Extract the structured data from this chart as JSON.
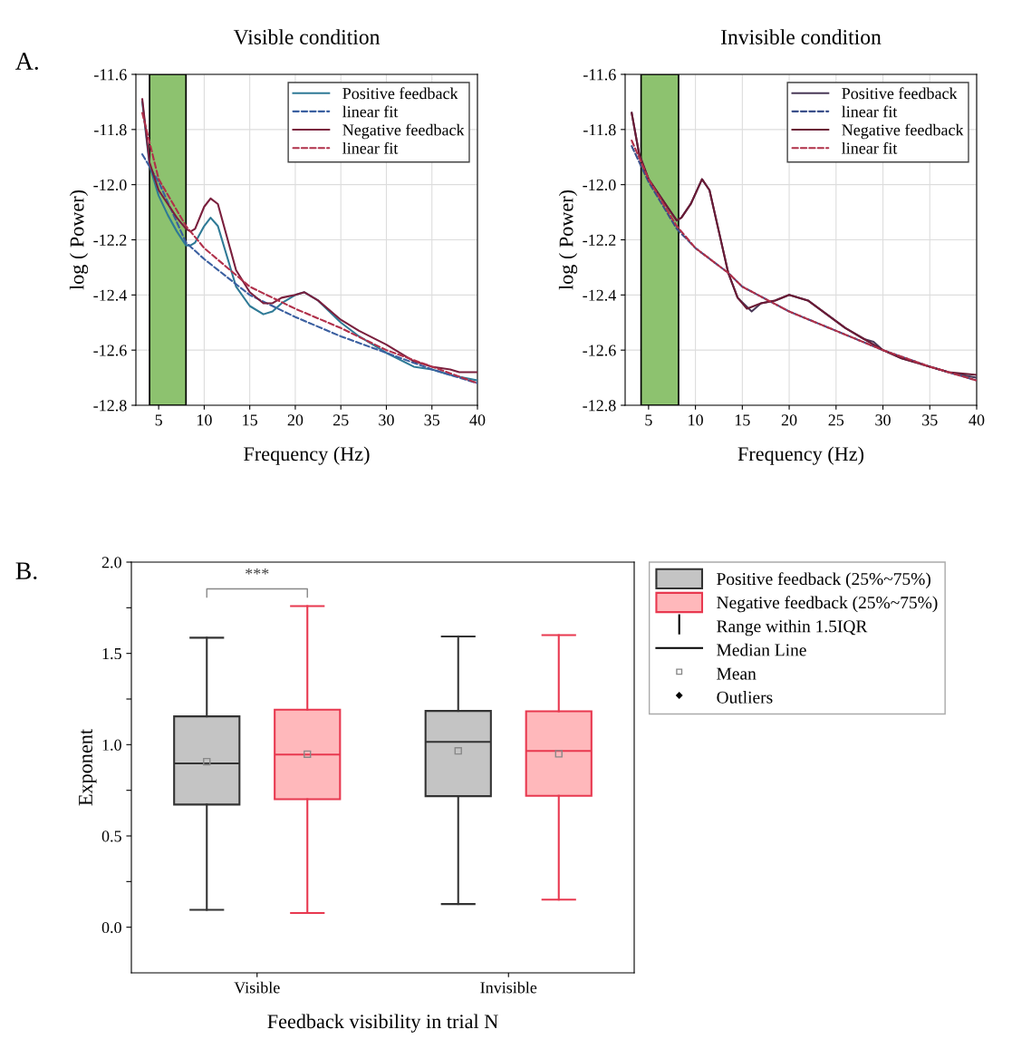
{
  "chart_data": [
    {
      "type": "line",
      "title": "Visible condition",
      "xlabel": "Frequency (Hz)",
      "ylabel": "log ( Power)",
      "annotations": [
        "A."
      ],
      "xlim": [
        2.5,
        40
      ],
      "xticks": [
        5,
        10,
        15,
        20,
        25,
        30,
        35,
        40
      ],
      "ylim": [
        -12.8,
        -11.6
      ],
      "yticks": [
        -12.8,
        -12.6,
        -12.4,
        -12.2,
        {
          "value": -12.0,
          "label": "-12.0"
        },
        -11.8,
        -11.6
      ],
      "grid": true,
      "legend": "top right",
      "bands": [
        {
          "axis": "x",
          "from": 4,
          "to": 8,
          "color": "#8dc26f"
        }
      ],
      "series": [
        {
          "name": "Positive feedback",
          "color": "#2f7a96",
          "line_style": "solid",
          "x": [
            3.2,
            4,
            5,
            6,
            7,
            8,
            8.5,
            9,
            10,
            10.7,
            11.5,
            12.5,
            13.5,
            15,
            16.5,
            17.5,
            18.5,
            20,
            21,
            22.5,
            25,
            27,
            30,
            33,
            35,
            37,
            40
          ],
          "values": [
            -11.7,
            -11.93,
            -12.04,
            -12.11,
            -12.17,
            -12.22,
            -12.22,
            -12.21,
            -12.15,
            -12.12,
            -12.15,
            -12.26,
            -12.37,
            -12.44,
            -12.47,
            -12.46,
            -12.43,
            -12.4,
            -12.39,
            -12.42,
            -12.5,
            -12.55,
            -12.61,
            -12.66,
            -12.67,
            -12.69,
            -12.71
          ]
        },
        {
          "name": "linear fit",
          "color": "#3a5fa0",
          "line_style": "dashed",
          "x": [
            3.2,
            5,
            8,
            10,
            15,
            20,
            25,
            30,
            35,
            40
          ],
          "values": [
            -11.89,
            -11.99,
            -12.21,
            -12.27,
            -12.4,
            -12.48,
            -12.55,
            -12.61,
            -12.67,
            -12.72
          ]
        },
        {
          "name": "Negative feedback",
          "color": "#7a1f3d",
          "line_style": "solid",
          "x": [
            3.2,
            4,
            5,
            6,
            7,
            8,
            8.5,
            9,
            10,
            10.7,
            11.5,
            12.5,
            13.5,
            15,
            16.5,
            17.5,
            18.5,
            20,
            21,
            22.5,
            25,
            27,
            30,
            33,
            35,
            37,
            38,
            40
          ],
          "values": [
            -11.69,
            -11.92,
            -12.02,
            -12.07,
            -12.12,
            -12.16,
            -12.17,
            -12.16,
            -12.08,
            -12.05,
            -12.07,
            -12.19,
            -12.31,
            -12.39,
            -12.43,
            -12.43,
            -12.41,
            -12.4,
            -12.39,
            -12.42,
            -12.49,
            -12.53,
            -12.58,
            -12.64,
            -12.66,
            -12.67,
            -12.68,
            -12.68
          ]
        },
        {
          "name": "linear fit",
          "color": "#b0304a",
          "line_style": "dashed",
          "x": [
            3.2,
            5,
            8,
            10,
            15,
            20,
            25,
            30,
            35,
            40
          ],
          "values": [
            -11.74,
            -11.98,
            -12.15,
            -12.23,
            -12.37,
            -12.45,
            -12.52,
            -12.6,
            -12.66,
            -12.72
          ]
        }
      ]
    },
    {
      "type": "line",
      "title": "Invisible condition",
      "xlabel": "Frequency (Hz)",
      "ylabel": "log ( Power)",
      "xlim": [
        2.5,
        40
      ],
      "xticks": [
        5,
        10,
        15,
        20,
        25,
        30,
        35,
        40
      ],
      "ylim": [
        -12.8,
        -11.6
      ],
      "yticks": [
        -12.8,
        -12.6,
        -12.4,
        -12.2,
        {
          "value": -12.0,
          "label": "-12.0"
        },
        -11.8,
        -11.6
      ],
      "grid": true,
      "legend": "top right",
      "bands": [
        {
          "axis": "x",
          "from": 4.2,
          "to": 8.2,
          "color": "#8dc26f"
        }
      ],
      "series": [
        {
          "name": "Positive feedback",
          "color": "#4a3a58",
          "line_style": "solid",
          "x": [
            3.2,
            4,
            5,
            6,
            7,
            8,
            8.5,
            9.5,
            10.7,
            11.5,
            12.5,
            13.5,
            14.5,
            16,
            17,
            18.5,
            20,
            22,
            24,
            26,
            28,
            29,
            30,
            32,
            34,
            37,
            40
          ],
          "values": [
            -11.74,
            -11.89,
            -11.98,
            -12.03,
            -12.08,
            -12.13,
            -12.12,
            -12.07,
            -11.98,
            -12.02,
            -12.17,
            -12.32,
            -12.41,
            -12.46,
            -12.43,
            -12.42,
            -12.4,
            -12.42,
            -12.47,
            -12.52,
            -12.56,
            -12.57,
            -12.6,
            -12.63,
            -12.65,
            -12.68,
            -12.7
          ]
        },
        {
          "name": "linear fit",
          "color": "#3a4f8a",
          "line_style": "dashed",
          "x": [
            3.2,
            5,
            8,
            10,
            13.5,
            15,
            20,
            25,
            30,
            35,
            40
          ],
          "values": [
            -11.86,
            -11.99,
            -12.16,
            -12.23,
            -12.32,
            -12.37,
            -12.46,
            -12.53,
            -12.6,
            -12.66,
            -12.71
          ]
        },
        {
          "name": "Negative feedback",
          "color": "#6a1a35",
          "line_style": "solid",
          "x": [
            3.2,
            4,
            5,
            6,
            7,
            8,
            8.5,
            9.5,
            10.7,
            11.5,
            12.5,
            13.5,
            14.5,
            15.5,
            17,
            18.5,
            20,
            22,
            24,
            26,
            28,
            30,
            32,
            34,
            37,
            40
          ],
          "values": [
            -11.74,
            -11.89,
            -11.98,
            -12.03,
            -12.08,
            -12.13,
            -12.12,
            -12.07,
            -11.98,
            -12.02,
            -12.17,
            -12.32,
            -12.41,
            -12.45,
            -12.43,
            -12.42,
            -12.4,
            -12.42,
            -12.47,
            -12.52,
            -12.56,
            -12.6,
            -12.63,
            -12.65,
            -12.68,
            -12.69
          ]
        },
        {
          "name": "linear fit",
          "color": "#b03048",
          "line_style": "dashed",
          "x": [
            3.2,
            5,
            8,
            10,
            13.5,
            15,
            20,
            25,
            30,
            35,
            40
          ],
          "values": [
            -11.84,
            -11.98,
            -12.15,
            -12.23,
            -12.32,
            -12.37,
            -12.46,
            -12.53,
            -12.6,
            -12.66,
            -12.71
          ]
        }
      ]
    },
    {
      "type": "box",
      "xlabel": "Feedback visibility in trial N",
      "ylabel": "Exponent",
      "categories": [
        "Visible",
        "Invisible"
      ],
      "ylim": [
        -0.25,
        2.0
      ],
      "yticks": [
        {
          "value": 0.0,
          "label": "0.0"
        },
        {
          "value": 0.25,
          "label": null
        },
        {
          "value": 0.5,
          "label": "0.5"
        },
        {
          "value": 0.75,
          "label": null
        },
        {
          "value": 1.0,
          "label": "1.0"
        },
        {
          "value": 1.25,
          "label": null
        },
        {
          "value": 1.5,
          "label": "1.5"
        },
        {
          "value": 1.75,
          "label": null
        },
        {
          "value": 2.0,
          "label": "2.0"
        }
      ],
      "grid": false,
      "legend": "right",
      "annotations": [
        "***",
        "B.",
        "Range within 1.5IQR",
        "Median Line",
        "Mean",
        "Outliers"
      ],
      "series": [
        {
          "name": "Positive feedback (25%~75%)",
          "color": "#c4c4c4",
          "boxes": [
            {
              "low": 0.095,
              "q1": 0.672,
              "median": 0.897,
              "q3": 1.155,
              "high": 1.586,
              "mean": 0.907
            },
            {
              "low": 0.127,
              "q1": 0.718,
              "median": 1.015,
              "q3": 1.185,
              "high": 1.593,
              "mean": 0.966
            }
          ]
        },
        {
          "name": "Negative feedback (25%~75%)",
          "color": "#ffb8bb",
          "boxes": [
            {
              "low": 0.078,
              "q1": 0.701,
              "median": 0.946,
              "q3": 1.192,
              "high": 1.759,
              "mean": 0.948
            },
            {
              "low": 0.151,
              "q1": 0.72,
              "median": 0.966,
              "q3": 1.183,
              "high": 1.6,
              "mean": 0.95
            }
          ]
        }
      ]
    }
  ]
}
